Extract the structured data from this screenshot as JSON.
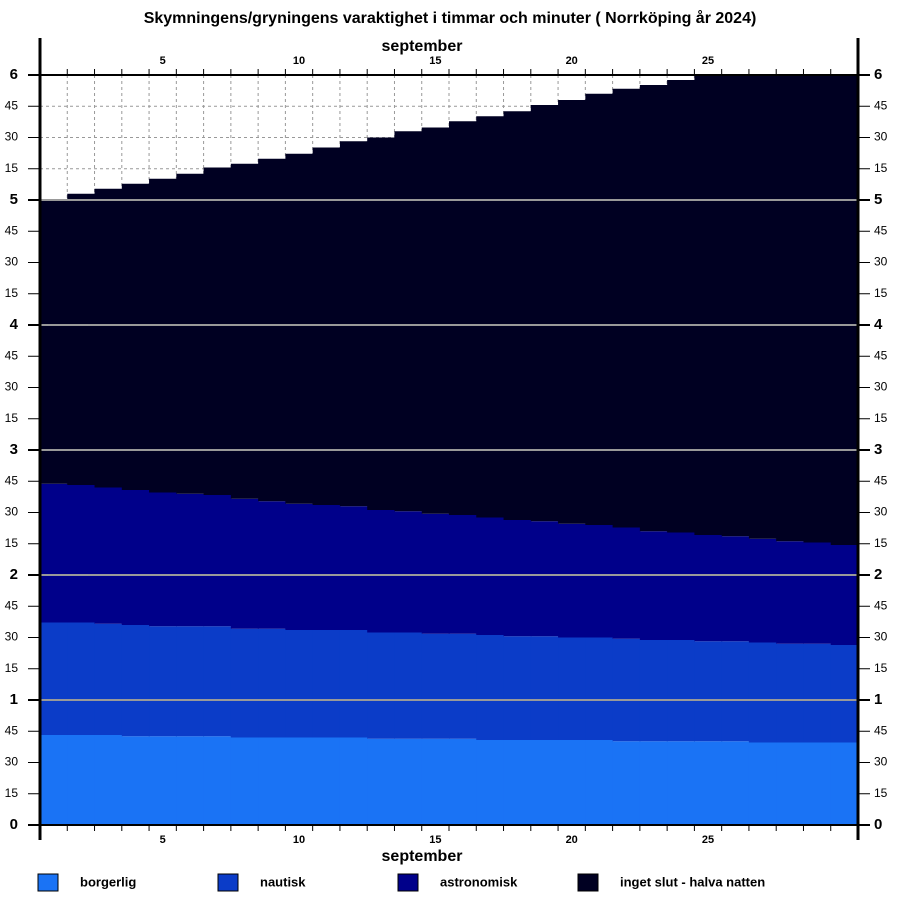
{
  "chart_data": {
    "type": "stacked-step",
    "title": "Skymningens/gryningens varaktighet i timmar och minuter  ( Norrköping år 2024)",
    "x_label": "september",
    "categories": [
      null,
      null,
      null,
      null,
      "5",
      null,
      null,
      null,
      null,
      "10",
      null,
      null,
      null,
      null,
      "15",
      null,
      null,
      null,
      null,
      "20",
      null,
      null,
      null,
      null,
      "25",
      null,
      null,
      null,
      null,
      null
    ],
    "series": [
      {
        "name": "borgerlig",
        "color": "#1a73f5",
        "values": [
          0.72,
          0.72,
          0.72,
          0.71,
          0.71,
          0.71,
          0.71,
          0.7,
          0.7,
          0.7,
          0.7,
          0.7,
          0.69,
          0.69,
          0.69,
          0.69,
          0.68,
          0.68,
          0.68,
          0.68,
          0.68,
          0.67,
          0.67,
          0.67,
          0.67,
          0.67,
          0.66,
          0.66,
          0.66,
          0.66
        ]
      },
      {
        "name": "nautisk",
        "color": "#0b3cc8",
        "values": [
          0.9,
          0.9,
          0.89,
          0.89,
          0.88,
          0.88,
          0.88,
          0.87,
          0.87,
          0.86,
          0.86,
          0.86,
          0.85,
          0.85,
          0.84,
          0.84,
          0.84,
          0.83,
          0.83,
          0.82,
          0.82,
          0.82,
          0.81,
          0.81,
          0.8,
          0.8,
          0.8,
          0.79,
          0.79,
          0.78
        ]
      },
      {
        "name": "astronomisk",
        "color": "#00008a",
        "values": [
          1.11,
          1.1,
          1.09,
          1.08,
          1.07,
          1.06,
          1.05,
          1.04,
          1.02,
          1.01,
          1.0,
          0.99,
          0.98,
          0.97,
          0.96,
          0.95,
          0.94,
          0.93,
          0.92,
          0.91,
          0.9,
          0.89,
          0.87,
          0.86,
          0.85,
          0.84,
          0.83,
          0.82,
          0.81,
          0.8
        ]
      },
      {
        "name": "inget slut - halva natten",
        "color": "#000022",
        "values": [
          2.27,
          2.33,
          2.39,
          2.45,
          2.51,
          2.56,
          2.62,
          2.68,
          2.74,
          2.8,
          2.86,
          2.92,
          2.98,
          3.04,
          3.09,
          3.15,
          3.21,
          3.27,
          3.33,
          3.39,
          3.45,
          3.51,
          3.57,
          3.62,
          3.68,
          3.69,
          3.71,
          3.73,
          3.74,
          3.76
        ]
      }
    ],
    "ylim": [
      0,
      6
    ],
    "yticks": [
      0,
      {
        "value": 0.25,
        "label": "15"
      },
      {
        "value": 0.5,
        "label": "30"
      },
      {
        "value": 0.75,
        "label": "45"
      },
      1,
      {
        "value": 1.25,
        "label": "15"
      },
      {
        "value": 1.5,
        "label": "30"
      },
      {
        "value": 1.75,
        "label": "45"
      },
      2,
      {
        "value": 2.25,
        "label": "15"
      },
      {
        "value": 2.5,
        "label": "30"
      },
      {
        "value": 2.75,
        "label": "45"
      },
      3,
      {
        "value": 3.25,
        "label": "15"
      },
      {
        "value": 3.5,
        "label": "30"
      },
      {
        "value": 3.75,
        "label": "45"
      },
      4,
      {
        "value": 4.25,
        "label": "15"
      },
      {
        "value": 4.5,
        "label": "30"
      },
      {
        "value": 4.75,
        "label": "45"
      },
      5,
      {
        "value": 5.25,
        "label": "15"
      },
      {
        "value": 5.5,
        "label": "30"
      },
      {
        "value": 5.75,
        "label": "45"
      },
      6
    ],
    "grid": true,
    "legend": "bottom"
  }
}
